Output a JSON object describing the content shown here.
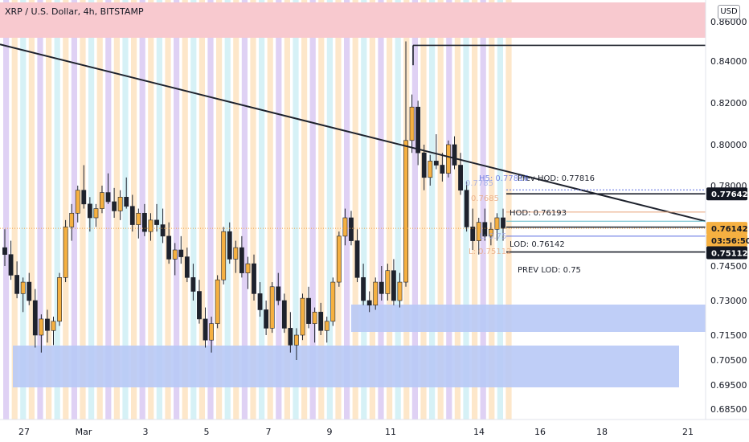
{
  "chart_data": {
    "type": "candlestick",
    "title": "XRP / U.S. Dollar, 4h, BITSTAMP",
    "currency": "USD",
    "ylim": [
      0.68,
      0.87
    ],
    "price_ticks": [
      "0.86000",
      "0.84000",
      "0.82000",
      "0.80000",
      "0.78000",
      "0.74500",
      "0.73000",
      "0.71500",
      "0.70500",
      "0.69500",
      "0.68500"
    ],
    "price_tick_values": [
      0.86,
      0.84,
      0.82,
      0.8,
      0.78,
      0.745,
      0.73,
      0.715,
      0.705,
      0.695,
      0.685
    ],
    "date_ticks": [
      "27",
      "Mar",
      "3",
      "5",
      "7",
      "9",
      "11",
      "14",
      "16",
      "18",
      "21"
    ],
    "price_tags": [
      {
        "text": "0.77642",
        "value": 0.77642,
        "style": "dark"
      },
      {
        "text": "0.76142",
        "value": 0.76142,
        "style": "orange"
      },
      {
        "text": "03:56:50",
        "value": 0.76142,
        "style": "orange-sub"
      },
      {
        "text": "0.75112",
        "value": 0.75112,
        "style": "dark"
      }
    ],
    "levels": [
      {
        "label": "Prev HOD: 0.77816",
        "value": 0.77816,
        "color": "#1e222d"
      },
      {
        "label": "HOD: 0.76193",
        "value": 0.76193,
        "color": "#1e222d"
      },
      {
        "label": "LOD: 0.76142",
        "value": 0.76142,
        "color": "#1e222d"
      },
      {
        "label": "PREV LOD: 0.75",
        "value": 0.75,
        "color": "#1e222d"
      }
    ],
    "faded_labels": [
      {
        "text": "H5: 0.77816",
        "color": "#5b6ee1"
      },
      {
        "text": "0.7785",
        "color": "#9aa7e8"
      },
      {
        "text": "0.7685",
        "color": "#e8a47a"
      },
      {
        "text": "L: 0.75",
        "color": "#9aa7e8"
      },
      {
        "text": "L: 0.75112",
        "color": "#e8a47a"
      }
    ],
    "candles": [
      [
        0.753,
        0.761,
        0.745,
        0.75
      ],
      [
        0.75,
        0.756,
        0.739,
        0.741
      ],
      [
        0.741,
        0.747,
        0.731,
        0.733
      ],
      [
        0.733,
        0.74,
        0.725,
        0.738
      ],
      [
        0.738,
        0.742,
        0.728,
        0.73
      ],
      [
        0.73,
        0.735,
        0.71,
        0.715
      ],
      [
        0.715,
        0.724,
        0.708,
        0.722
      ],
      [
        0.722,
        0.726,
        0.712,
        0.717
      ],
      [
        0.717,
        0.723,
        0.711,
        0.721
      ],
      [
        0.721,
        0.742,
        0.719,
        0.74
      ],
      [
        0.74,
        0.765,
        0.738,
        0.762
      ],
      [
        0.762,
        0.772,
        0.756,
        0.768
      ],
      [
        0.768,
        0.78,
        0.764,
        0.778
      ],
      [
        0.778,
        0.79,
        0.77,
        0.772
      ],
      [
        0.772,
        0.775,
        0.76,
        0.766
      ],
      [
        0.766,
        0.772,
        0.762,
        0.77
      ],
      [
        0.77,
        0.78,
        0.768,
        0.777
      ],
      [
        0.777,
        0.786,
        0.772,
        0.773
      ],
      [
        0.773,
        0.779,
        0.766,
        0.769
      ],
      [
        0.769,
        0.778,
        0.765,
        0.775
      ],
      [
        0.775,
        0.784,
        0.77,
        0.771
      ],
      [
        0.771,
        0.776,
        0.76,
        0.763
      ],
      [
        0.763,
        0.77,
        0.757,
        0.768
      ],
      [
        0.768,
        0.772,
        0.758,
        0.76
      ],
      [
        0.76,
        0.768,
        0.756,
        0.765
      ],
      [
        0.765,
        0.772,
        0.76,
        0.763
      ],
      [
        0.763,
        0.77,
        0.755,
        0.758
      ],
      [
        0.758,
        0.764,
        0.746,
        0.748
      ],
      [
        0.748,
        0.755,
        0.741,
        0.752
      ],
      [
        0.752,
        0.758,
        0.746,
        0.749
      ],
      [
        0.749,
        0.753,
        0.738,
        0.74
      ],
      [
        0.74,
        0.746,
        0.73,
        0.734
      ],
      [
        0.734,
        0.739,
        0.72,
        0.722
      ],
      [
        0.722,
        0.727,
        0.71,
        0.713
      ],
      [
        0.713,
        0.723,
        0.708,
        0.72
      ],
      [
        0.72,
        0.741,
        0.718,
        0.739
      ],
      [
        0.739,
        0.762,
        0.737,
        0.76
      ],
      [
        0.76,
        0.764,
        0.746,
        0.748
      ],
      [
        0.748,
        0.756,
        0.742,
        0.753
      ],
      [
        0.753,
        0.758,
        0.74,
        0.742
      ],
      [
        0.742,
        0.749,
        0.735,
        0.746
      ],
      [
        0.746,
        0.75,
        0.73,
        0.733
      ],
      [
        0.733,
        0.738,
        0.723,
        0.726
      ],
      [
        0.726,
        0.73,
        0.715,
        0.718
      ],
      [
        0.718,
        0.738,
        0.716,
        0.736
      ],
      [
        0.736,
        0.742,
        0.728,
        0.73
      ],
      [
        0.73,
        0.733,
        0.716,
        0.718
      ],
      [
        0.718,
        0.725,
        0.708,
        0.711
      ],
      [
        0.711,
        0.718,
        0.705,
        0.715
      ],
      [
        0.715,
        0.733,
        0.713,
        0.731
      ],
      [
        0.731,
        0.736,
        0.718,
        0.72
      ],
      [
        0.72,
        0.727,
        0.712,
        0.725
      ],
      [
        0.725,
        0.729,
        0.715,
        0.717
      ],
      [
        0.717,
        0.723,
        0.712,
        0.721
      ],
      [
        0.721,
        0.74,
        0.719,
        0.738
      ],
      [
        0.738,
        0.76,
        0.736,
        0.758
      ],
      [
        0.758,
        0.77,
        0.754,
        0.766
      ],
      [
        0.766,
        0.769,
        0.754,
        0.756
      ],
      [
        0.756,
        0.761,
        0.738,
        0.74
      ],
      [
        0.74,
        0.746,
        0.728,
        0.73
      ],
      [
        0.73,
        0.734,
        0.725,
        0.728
      ],
      [
        0.728,
        0.74,
        0.726,
        0.738
      ],
      [
        0.738,
        0.745,
        0.73,
        0.733
      ],
      [
        0.733,
        0.746,
        0.73,
        0.743
      ],
      [
        0.743,
        0.748,
        0.728,
        0.73
      ],
      [
        0.73,
        0.742,
        0.727,
        0.738
      ],
      [
        0.738,
        0.85,
        0.736,
        0.802
      ],
      [
        0.802,
        0.824,
        0.796,
        0.818
      ],
      [
        0.818,
        0.821,
        0.79,
        0.796
      ],
      [
        0.796,
        0.8,
        0.778,
        0.784
      ],
      [
        0.784,
        0.795,
        0.78,
        0.792
      ],
      [
        0.792,
        0.805,
        0.788,
        0.79
      ],
      [
        0.79,
        0.796,
        0.782,
        0.786
      ],
      [
        0.786,
        0.802,
        0.784,
        0.8
      ],
      [
        0.8,
        0.804,
        0.788,
        0.79
      ],
      [
        0.79,
        0.796,
        0.776,
        0.778
      ],
      [
        0.778,
        0.782,
        0.76,
        0.762
      ],
      [
        0.762,
        0.77,
        0.752,
        0.756
      ],
      [
        0.756,
        0.766,
        0.75,
        0.764
      ],
      [
        0.764,
        0.77,
        0.756,
        0.758
      ],
      [
        0.758,
        0.764,
        0.754,
        0.761
      ],
      [
        0.761,
        0.768,
        0.756,
        0.766
      ],
      [
        0.766,
        0.77,
        0.756,
        0.7614
      ]
    ]
  }
}
